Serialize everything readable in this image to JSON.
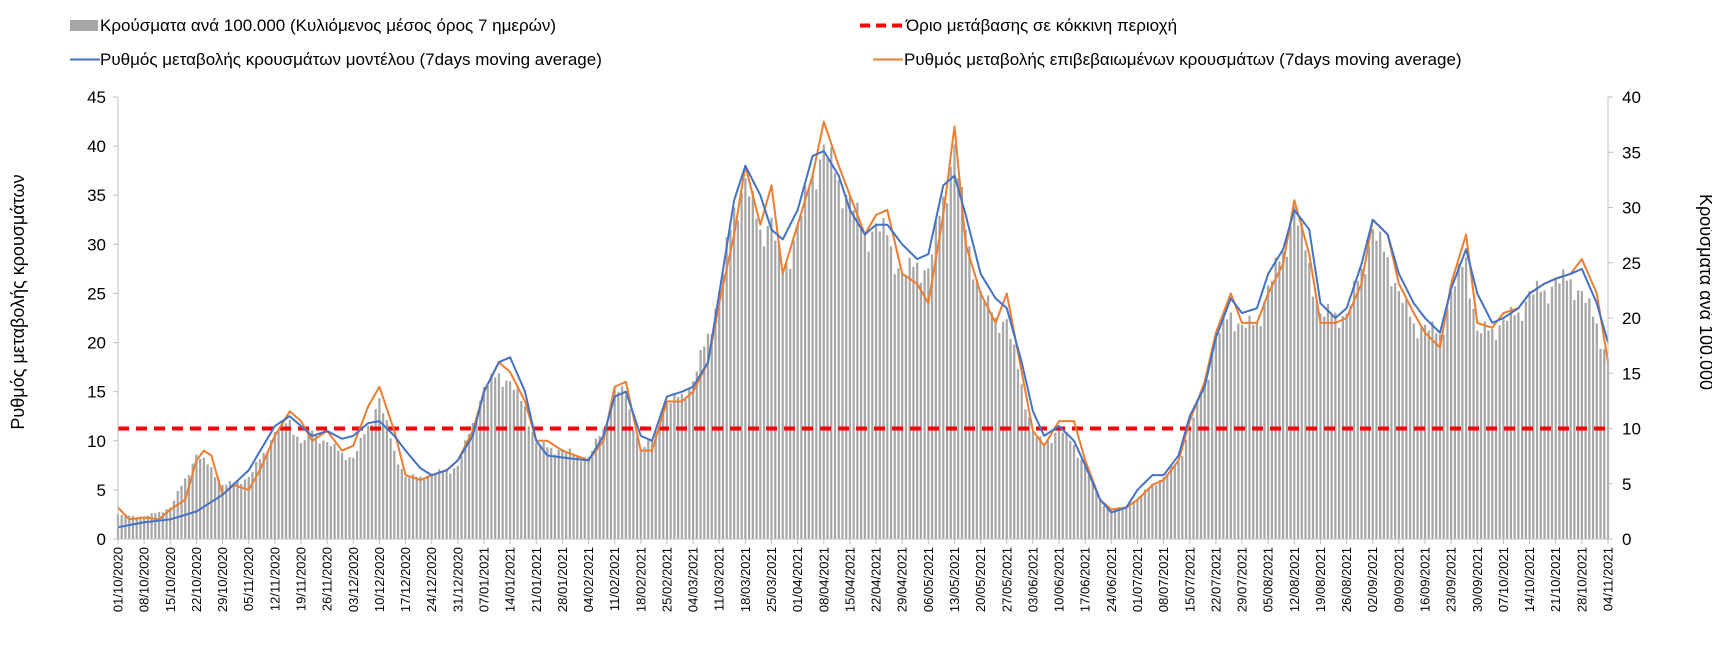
{
  "chart_data": {
    "type": "bar",
    "legend": {
      "placement": "top",
      "items": [
        {
          "label": "Κρούσματα ανά 100.000 (Κυλιόμενος μέσος όρος 7 ημερών)",
          "color": "#a6a6a6",
          "marker": "bar"
        },
        {
          "label": "Όριο μετάβασης σε κόκκινη περιοχή",
          "color": "#ff0000",
          "marker": "dashed-line"
        },
        {
          "label": "Ρυθμός μεταβολής κρουσμάτων μοντέλου (7days moving average)",
          "color": "#4472c4",
          "marker": "line"
        },
        {
          "label": "Ρυθμός μεταβολής επιβεβαιωμένων κρουσμάτων (7days moving average)",
          "color": "#ed7d31",
          "marker": "line"
        }
      ]
    },
    "ylabel": "Ρυθμός μεταβολής κρουσμάτων",
    "y2label": "Κρούσματα ανά 100.000",
    "ylim": [
      0,
      45
    ],
    "y2lim": [
      0,
      40
    ],
    "yticks": [
      "0",
      "5",
      "10",
      "15",
      "20",
      "25",
      "30",
      "35",
      "40",
      "45"
    ],
    "y2ticks": [
      "0",
      "5",
      "10",
      "15",
      "20",
      "25",
      "30",
      "35",
      "40"
    ],
    "grid": false,
    "x_start": "01/10/2020",
    "x_end": "04/11/2021",
    "xticks": [
      "01/10/2020",
      "08/10/2020",
      "15/10/2020",
      "22/10/2020",
      "29/10/2020",
      "05/11/2020",
      "12/11/2020",
      "19/11/2020",
      "26/11/2020",
      "03/12/2020",
      "10/12/2020",
      "17/12/2020",
      "24/12/2020",
      "31/12/2020",
      "07/01/2021",
      "14/01/2021",
      "21/01/2021",
      "28/01/2021",
      "04/02/2021",
      "11/02/2021",
      "18/02/2021",
      "25/02/2021",
      "04/03/2021",
      "11/03/2021",
      "18/03/2021",
      "25/03/2021",
      "01/04/2021",
      "08/04/2021",
      "15/04/2021",
      "22/04/2021",
      "29/04/2021",
      "06/05/2021",
      "13/05/2021",
      "20/05/2021",
      "27/05/2021",
      "03/06/2021",
      "10/06/2021",
      "17/06/2021",
      "24/06/2021",
      "01/07/2021",
      "08/07/2021",
      "15/07/2021",
      "22/07/2021",
      "29/07/2021",
      "05/08/2021",
      "12/08/2021",
      "19/08/2021",
      "26/08/2021",
      "02/09/2021",
      "09/09/2021",
      "16/09/2021",
      "23/09/2021",
      "30/09/2021",
      "07/10/2021",
      "14/10/2021",
      "21/10/2021",
      "28/10/2021",
      "04/11/2021"
    ],
    "threshold_y2": 10,
    "cases_per_100k_keypoints": [
      [
        "01/10/2020",
        2.2
      ],
      [
        "08/10/2020",
        2.0
      ],
      [
        "15/10/2020",
        2.8
      ],
      [
        "22/10/2020",
        7.5
      ],
      [
        "26/10/2020",
        6.5
      ],
      [
        "29/10/2020",
        4.8
      ],
      [
        "05/11/2020",
        5.5
      ],
      [
        "12/11/2020",
        9.5
      ],
      [
        "16/11/2020",
        10.8
      ],
      [
        "19/11/2020",
        8.5
      ],
      [
        "22/11/2020",
        9.8
      ],
      [
        "26/11/2020",
        8.6
      ],
      [
        "03/12/2020",
        7.2
      ],
      [
        "08/12/2020",
        11.0
      ],
      [
        "10/12/2020",
        12.5
      ],
      [
        "14/12/2020",
        8.0
      ],
      [
        "17/12/2020",
        5.5
      ],
      [
        "24/12/2020",
        5.8
      ],
      [
        "31/12/2020",
        6.5
      ],
      [
        "07/01/2021",
        13.5
      ],
      [
        "11/01/2021",
        15.0
      ],
      [
        "14/01/2021",
        14.0
      ],
      [
        "18/01/2021",
        12.0
      ],
      [
        "21/01/2021",
        8.5
      ],
      [
        "28/01/2021",
        8.0
      ],
      [
        "04/02/2021",
        7.3
      ],
      [
        "08/02/2021",
        10.0
      ],
      [
        "11/02/2021",
        13.5
      ],
      [
        "14/02/2021",
        13.0
      ],
      [
        "18/02/2021",
        8.0
      ],
      [
        "21/02/2021",
        9.0
      ],
      [
        "25/02/2021",
        12.0
      ],
      [
        "04/03/2021",
        14.0
      ],
      [
        "11/03/2021",
        22.0
      ],
      [
        "15/03/2021",
        30.0
      ],
      [
        "18/03/2021",
        32.0
      ],
      [
        "22/03/2021",
        28.0
      ],
      [
        "25/03/2021",
        28.5
      ],
      [
        "28/03/2021",
        24.0
      ],
      [
        "01/04/2021",
        28.0
      ],
      [
        "05/04/2021",
        33.0
      ],
      [
        "08/04/2021",
        35.0
      ],
      [
        "12/04/2021",
        32.5
      ],
      [
        "15/04/2021",
        30.5
      ],
      [
        "19/04/2021",
        27.5
      ],
      [
        "22/04/2021",
        28.0
      ],
      [
        "25/04/2021",
        27.5
      ],
      [
        "29/04/2021",
        23.5
      ],
      [
        "03/05/2021",
        25.0
      ],
      [
        "06/05/2021",
        24.0
      ],
      [
        "10/05/2021",
        31.0
      ],
      [
        "13/05/2021",
        35.0
      ],
      [
        "16/05/2021",
        28.0
      ],
      [
        "20/05/2021",
        22.0
      ],
      [
        "24/05/2021",
        20.0
      ],
      [
        "27/05/2021",
        19.5
      ],
      [
        "31/05/2021",
        14.0
      ],
      [
        "03/06/2021",
        9.5
      ],
      [
        "06/06/2021",
        8.5
      ],
      [
        "10/06/2021",
        10.0
      ],
      [
        "14/06/2021",
        8.5
      ],
      [
        "17/06/2021",
        6.5
      ],
      [
        "21/06/2021",
        3.5
      ],
      [
        "24/06/2021",
        2.5
      ],
      [
        "28/06/2021",
        3.0
      ],
      [
        "01/07/2021",
        3.5
      ],
      [
        "05/07/2021",
        5.0
      ],
      [
        "08/07/2021",
        5.5
      ],
      [
        "12/07/2021",
        7.0
      ],
      [
        "15/07/2021",
        10.0
      ],
      [
        "19/07/2021",
        14.0
      ],
      [
        "22/07/2021",
        18.0
      ],
      [
        "26/07/2021",
        20.5
      ],
      [
        "29/07/2021",
        19.0
      ],
      [
        "02/08/2021",
        19.5
      ],
      [
        "05/08/2021",
        22.5
      ],
      [
        "09/08/2021",
        26.0
      ],
      [
        "12/08/2021",
        29.5
      ],
      [
        "16/08/2021",
        25.0
      ],
      [
        "19/08/2021",
        20.0
      ],
      [
        "23/08/2021",
        20.5
      ],
      [
        "26/08/2021",
        20.0
      ],
      [
        "30/08/2021",
        24.5
      ],
      [
        "02/09/2021",
        27.5
      ],
      [
        "06/09/2021",
        25.5
      ],
      [
        "09/09/2021",
        22.0
      ],
      [
        "13/09/2021",
        19.5
      ],
      [
        "16/09/2021",
        19.0
      ],
      [
        "20/09/2021",
        18.5
      ],
      [
        "23/09/2021",
        22.0
      ],
      [
        "27/09/2021",
        25.5
      ],
      [
        "30/09/2021",
        18.5
      ],
      [
        "04/10/2021",
        19.0
      ],
      [
        "07/10/2021",
        19.5
      ],
      [
        "11/10/2021",
        20.5
      ],
      [
        "14/10/2021",
        22.0
      ],
      [
        "18/10/2021",
        22.5
      ],
      [
        "21/10/2021",
        23.0
      ],
      [
        "25/10/2021",
        23.5
      ],
      [
        "28/10/2021",
        22.0
      ],
      [
        "01/11/2021",
        19.5
      ],
      [
        "04/11/2021",
        16.0
      ]
    ],
    "model_rate_keypoints": [
      [
        "01/10/2020",
        1.2
      ],
      [
        "08/10/2020",
        1.7
      ],
      [
        "15/10/2020",
        2.0
      ],
      [
        "22/10/2020",
        2.8
      ],
      [
        "29/10/2020",
        4.5
      ],
      [
        "05/11/2020",
        7.0
      ],
      [
        "12/11/2020",
        11.5
      ],
      [
        "16/11/2020",
        12.5
      ],
      [
        "19/11/2020",
        11.5
      ],
      [
        "22/11/2020",
        10.5
      ],
      [
        "26/11/2020",
        11.0
      ],
      [
        "30/11/2020",
        10.2
      ],
      [
        "03/12/2020",
        10.5
      ],
      [
        "07/12/2020",
        11.8
      ],
      [
        "10/12/2020",
        12.0
      ],
      [
        "14/12/2020",
        10.5
      ],
      [
        "17/12/2020",
        9.0
      ],
      [
        "21/12/2020",
        7.2
      ],
      [
        "24/12/2020",
        6.5
      ],
      [
        "28/12/2020",
        7.0
      ],
      [
        "31/12/2020",
        8.0
      ],
      [
        "04/01/2021",
        10.5
      ],
      [
        "07/01/2021",
        15.0
      ],
      [
        "11/01/2021",
        18.0
      ],
      [
        "14/01/2021",
        18.5
      ],
      [
        "18/01/2021",
        15.0
      ],
      [
        "21/01/2021",
        10.0
      ],
      [
        "24/01/2021",
        8.5
      ],
      [
        "28/01/2021",
        8.3
      ],
      [
        "04/02/2021",
        8.0
      ],
      [
        "08/02/2021",
        10.5
      ],
      [
        "11/02/2021",
        14.5
      ],
      [
        "14/02/2021",
        15.0
      ],
      [
        "18/02/2021",
        10.5
      ],
      [
        "21/02/2021",
        10.0
      ],
      [
        "25/02/2021",
        14.5
      ],
      [
        "01/03/2021",
        15.0
      ],
      [
        "04/03/2021",
        15.5
      ],
      [
        "08/03/2021",
        18.0
      ],
      [
        "11/03/2021",
        25.0
      ],
      [
        "15/03/2021",
        34.5
      ],
      [
        "18/03/2021",
        38.0
      ],
      [
        "22/03/2021",
        35.0
      ],
      [
        "25/03/2021",
        31.5
      ],
      [
        "28/03/2021",
        30.5
      ],
      [
        "01/04/2021",
        33.5
      ],
      [
        "05/04/2021",
        39.0
      ],
      [
        "08/04/2021",
        39.5
      ],
      [
        "12/04/2021",
        37.0
      ],
      [
        "15/04/2021",
        33.5
      ],
      [
        "19/04/2021",
        31.0
      ],
      [
        "22/04/2021",
        32.0
      ],
      [
        "25/04/2021",
        32.0
      ],
      [
        "29/04/2021",
        30.0
      ],
      [
        "03/05/2021",
        28.5
      ],
      [
        "06/05/2021",
        29.0
      ],
      [
        "10/05/2021",
        36.0
      ],
      [
        "13/05/2021",
        37.0
      ],
      [
        "16/05/2021",
        33.0
      ],
      [
        "20/05/2021",
        27.0
      ],
      [
        "24/05/2021",
        24.5
      ],
      [
        "27/05/2021",
        23.5
      ],
      [
        "31/05/2021",
        18.0
      ],
      [
        "03/06/2021",
        13.0
      ],
      [
        "06/06/2021",
        10.5
      ],
      [
        "10/06/2021",
        11.5
      ],
      [
        "14/06/2021",
        10.0
      ],
      [
        "17/06/2021",
        7.5
      ],
      [
        "21/06/2021",
        4.0
      ],
      [
        "24/06/2021",
        2.7
      ],
      [
        "28/06/2021",
        3.2
      ],
      [
        "01/07/2021",
        5.0
      ],
      [
        "05/07/2021",
        6.5
      ],
      [
        "08/07/2021",
        6.5
      ],
      [
        "12/07/2021",
        8.5
      ],
      [
        "15/07/2021",
        12.5
      ],
      [
        "19/07/2021",
        15.5
      ],
      [
        "22/07/2021",
        20.5
      ],
      [
        "26/07/2021",
        24.5
      ],
      [
        "29/07/2021",
        23.0
      ],
      [
        "02/08/2021",
        23.5
      ],
      [
        "05/08/2021",
        27.0
      ],
      [
        "09/08/2021",
        29.5
      ],
      [
        "12/08/2021",
        33.5
      ],
      [
        "16/08/2021",
        31.5
      ],
      [
        "19/08/2021",
        24.0
      ],
      [
        "23/08/2021",
        22.5
      ],
      [
        "26/08/2021",
        23.5
      ],
      [
        "30/08/2021",
        28.0
      ],
      [
        "02/09/2021",
        32.5
      ],
      [
        "06/09/2021",
        31.0
      ],
      [
        "09/09/2021",
        27.0
      ],
      [
        "13/09/2021",
        24.0
      ],
      [
        "16/09/2021",
        22.5
      ],
      [
        "20/09/2021",
        21.0
      ],
      [
        "23/09/2021",
        25.5
      ],
      [
        "27/09/2021",
        29.5
      ],
      [
        "30/09/2021",
        25.0
      ],
      [
        "04/10/2021",
        22.0
      ],
      [
        "07/10/2021",
        22.5
      ],
      [
        "11/10/2021",
        23.5
      ],
      [
        "14/10/2021",
        25.0
      ],
      [
        "18/10/2021",
        26.0
      ],
      [
        "21/10/2021",
        26.5
      ],
      [
        "25/10/2021",
        27.0
      ],
      [
        "28/10/2021",
        27.5
      ],
      [
        "01/11/2021",
        24.0
      ],
      [
        "04/11/2021",
        20.0
      ]
    ],
    "confirmed_rate_keypoints": [
      [
        "01/10/2020",
        3.2
      ],
      [
        "04/10/2020",
        2.0
      ],
      [
        "08/10/2020",
        2.2
      ],
      [
        "12/10/2020",
        2.0
      ],
      [
        "15/10/2020",
        3.0
      ],
      [
        "19/10/2020",
        4.0
      ],
      [
        "22/10/2020",
        8.0
      ],
      [
        "24/10/2020",
        9.0
      ],
      [
        "26/10/2020",
        8.5
      ],
      [
        "29/10/2020",
        4.5
      ],
      [
        "01/11/2020",
        5.5
      ],
      [
        "05/11/2020",
        5.0
      ],
      [
        "08/11/2020",
        7.0
      ],
      [
        "12/11/2020",
        10.5
      ],
      [
        "16/11/2020",
        13.0
      ],
      [
        "19/11/2020",
        12.0
      ],
      [
        "22/11/2020",
        10.0
      ],
      [
        "26/11/2020",
        11.0
      ],
      [
        "30/11/2020",
        9.0
      ],
      [
        "03/12/2020",
        9.5
      ],
      [
        "07/12/2020",
        13.5
      ],
      [
        "10/12/2020",
        15.5
      ],
      [
        "14/12/2020",
        11.0
      ],
      [
        "17/12/2020",
        6.5
      ],
      [
        "21/12/2020",
        6.0
      ],
      [
        "24/12/2020",
        6.5
      ],
      [
        "28/12/2020",
        7.0
      ],
      [
        "31/12/2020",
        8.0
      ],
      [
        "04/01/2021",
        11.0
      ],
      [
        "07/01/2021",
        15.0
      ],
      [
        "11/01/2021",
        18.0
      ],
      [
        "14/01/2021",
        17.0
      ],
      [
        "18/01/2021",
        14.0
      ],
      [
        "21/01/2021",
        10.0
      ],
      [
        "24/01/2021",
        10.0
      ],
      [
        "28/01/2021",
        9.0
      ],
      [
        "04/02/2021",
        8.0
      ],
      [
        "08/02/2021",
        10.0
      ],
      [
        "11/02/2021",
        15.5
      ],
      [
        "14/02/2021",
        16.0
      ],
      [
        "18/02/2021",
        9.0
      ],
      [
        "21/02/2021",
        9.0
      ],
      [
        "25/02/2021",
        14.0
      ],
      [
        "01/03/2021",
        14.0
      ],
      [
        "04/03/2021",
        15.0
      ],
      [
        "08/03/2021",
        18.0
      ],
      [
        "11/03/2021",
        24.0
      ],
      [
        "15/03/2021",
        31.0
      ],
      [
        "18/03/2021",
        38.0
      ],
      [
        "22/03/2021",
        32.0
      ],
      [
        "25/03/2021",
        36.0
      ],
      [
        "28/03/2021",
        27.0
      ],
      [
        "01/04/2021",
        32.0
      ],
      [
        "05/04/2021",
        37.0
      ],
      [
        "08/04/2021",
        42.5
      ],
      [
        "12/04/2021",
        38.0
      ],
      [
        "15/04/2021",
        35.0
      ],
      [
        "19/04/2021",
        31.0
      ],
      [
        "22/04/2021",
        33.0
      ],
      [
        "25/04/2021",
        33.5
      ],
      [
        "29/04/2021",
        27.0
      ],
      [
        "03/05/2021",
        26.0
      ],
      [
        "06/05/2021",
        24.0
      ],
      [
        "10/05/2021",
        33.0
      ],
      [
        "13/05/2021",
        42.0
      ],
      [
        "16/05/2021",
        30.0
      ],
      [
        "20/05/2021",
        25.0
      ],
      [
        "24/05/2021",
        22.0
      ],
      [
        "27/05/2021",
        25.0
      ],
      [
        "31/05/2021",
        17.0
      ],
      [
        "03/06/2021",
        11.0
      ],
      [
        "06/06/2021",
        9.5
      ],
      [
        "10/06/2021",
        12.0
      ],
      [
        "14/06/2021",
        12.0
      ],
      [
        "17/06/2021",
        8.0
      ],
      [
        "21/06/2021",
        4.0
      ],
      [
        "24/06/2021",
        3.0
      ],
      [
        "28/06/2021",
        3.2
      ],
      [
        "01/07/2021",
        4.0
      ],
      [
        "05/07/2021",
        5.5
      ],
      [
        "08/07/2021",
        6.0
      ],
      [
        "12/07/2021",
        8.0
      ],
      [
        "15/07/2021",
        12.0
      ],
      [
        "19/07/2021",
        16.0
      ],
      [
        "22/07/2021",
        21.0
      ],
      [
        "26/07/2021",
        25.0
      ],
      [
        "29/07/2021",
        22.0
      ],
      [
        "02/08/2021",
        22.0
      ],
      [
        "05/08/2021",
        25.0
      ],
      [
        "09/08/2021",
        28.0
      ],
      [
        "12/08/2021",
        34.5
      ],
      [
        "16/08/2021",
        29.0
      ],
      [
        "19/08/2021",
        22.0
      ],
      [
        "23/08/2021",
        22.0
      ],
      [
        "26/08/2021",
        22.5
      ],
      [
        "30/08/2021",
        26.0
      ],
      [
        "02/09/2021",
        32.5
      ],
      [
        "06/09/2021",
        31.0
      ],
      [
        "09/09/2021",
        26.0
      ],
      [
        "13/09/2021",
        23.0
      ],
      [
        "16/09/2021",
        21.0
      ],
      [
        "20/09/2021",
        19.5
      ],
      [
        "23/09/2021",
        26.0
      ],
      [
        "27/09/2021",
        31.0
      ],
      [
        "30/09/2021",
        22.0
      ],
      [
        "04/10/2021",
        21.5
      ],
      [
        "07/10/2021",
        23.0
      ],
      [
        "11/10/2021",
        23.5
      ],
      [
        "14/10/2021",
        25.0
      ],
      [
        "18/10/2021",
        26.0
      ],
      [
        "21/10/2021",
        26.5
      ],
      [
        "25/10/2021",
        27.0
      ],
      [
        "28/10/2021",
        28.5
      ],
      [
        "01/11/2021",
        25.0
      ],
      [
        "04/11/2021",
        18.0
      ]
    ]
  }
}
